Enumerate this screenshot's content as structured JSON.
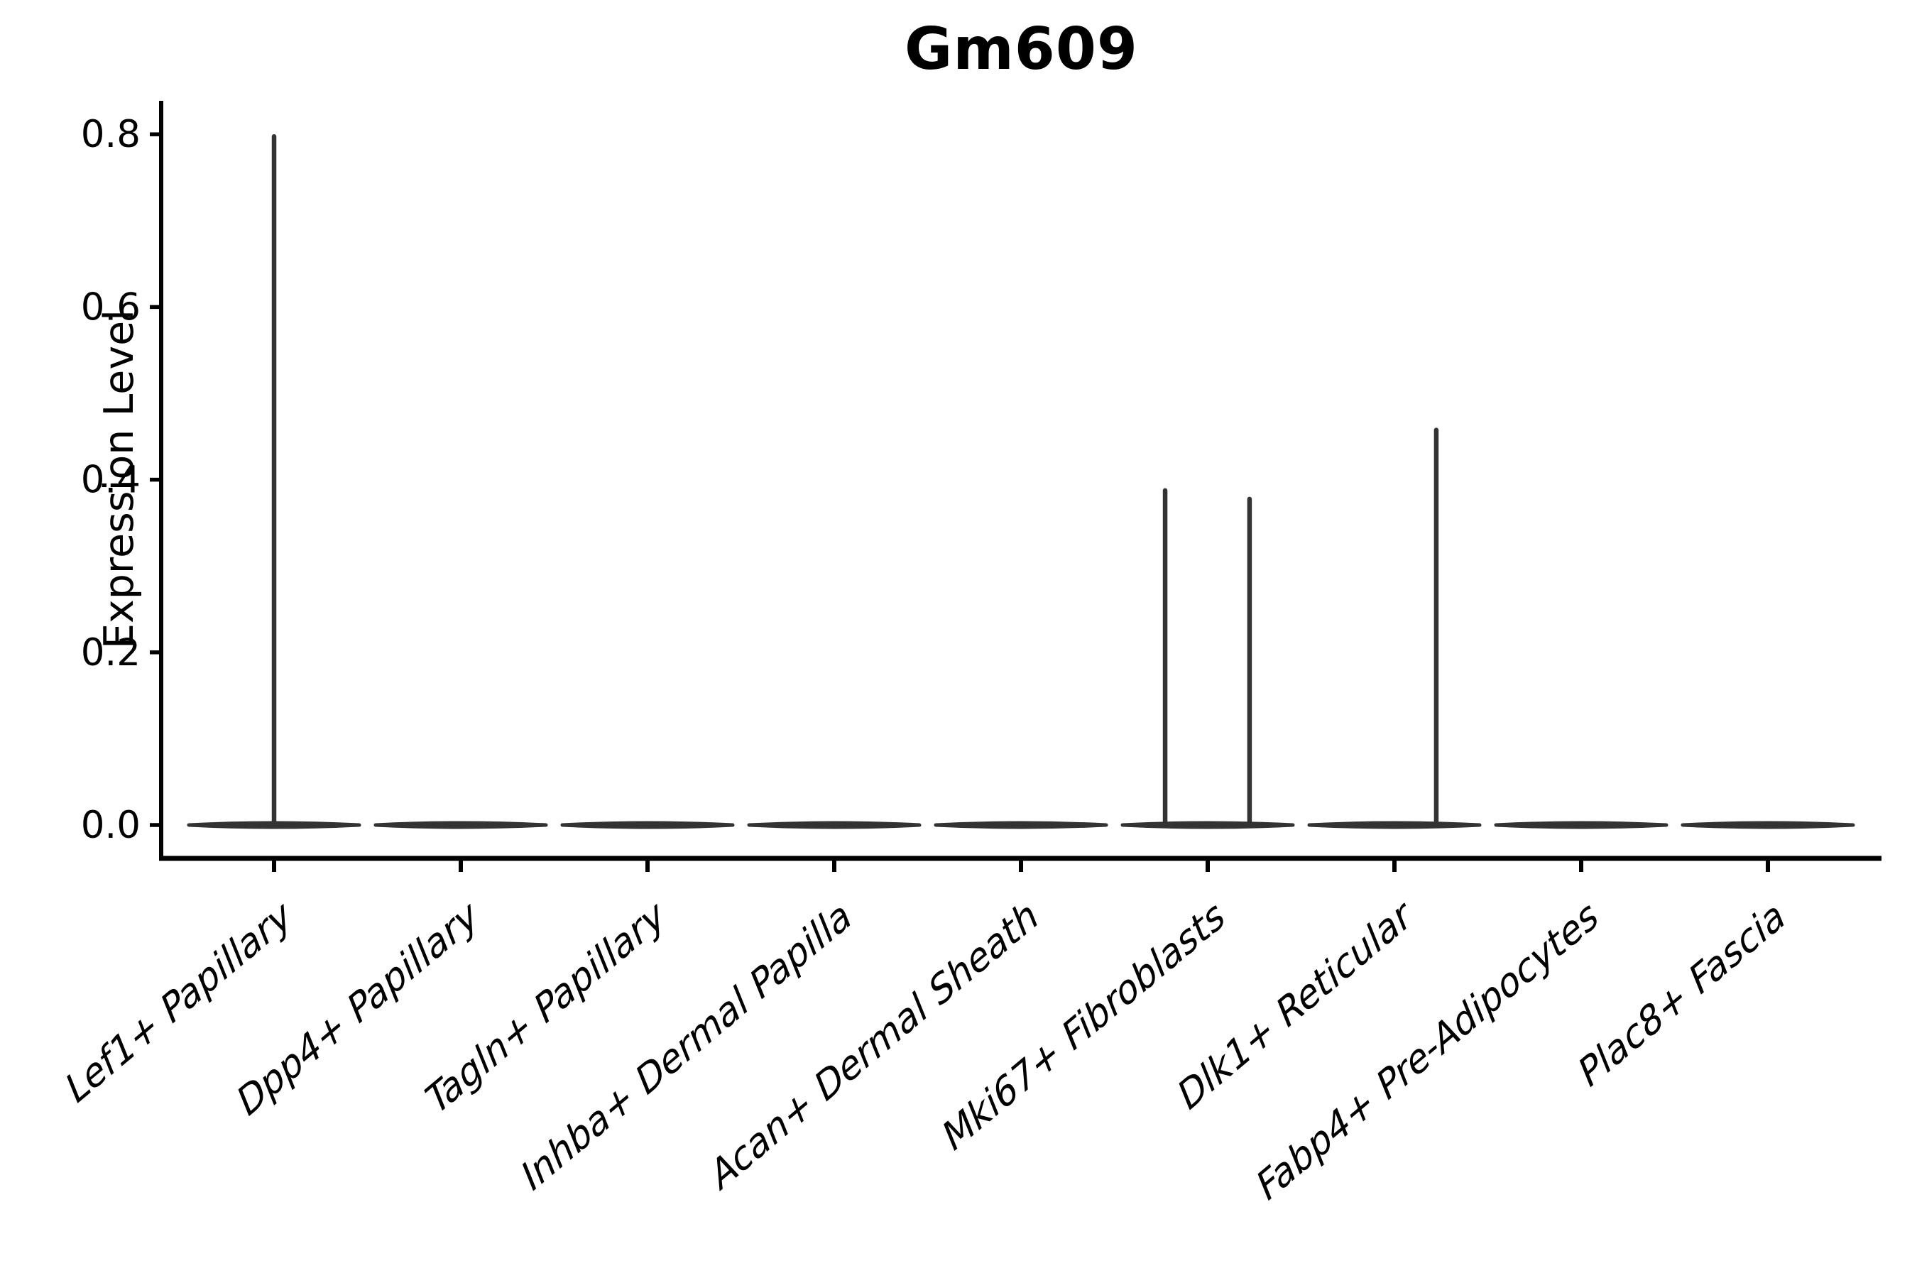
{
  "chart_data": {
    "type": "violin",
    "title": "Gm609",
    "xlabel": "",
    "ylabel": "Expression Level",
    "categories": [
      "Lef1+ Papillary",
      "Dpp4+ Papillary",
      "Tagln+ Papillary",
      "Inhba+ Dermal Papilla",
      "Acan+ Dermal Sheath",
      "Mki67+ Fibroblasts",
      "Dlk1+ Reticular",
      "Fabp4+ Pre-Adipocytes",
      "Plac8+ Fascia"
    ],
    "ylim": [
      -0.04,
      0.84
    ],
    "y_ticks": [
      0.0,
      0.2,
      0.4,
      0.6,
      0.8
    ],
    "y_tick_labels": [
      "0.0",
      "0.2",
      "0.4",
      "0.6",
      "0.8"
    ],
    "baseline_value": 0.0,
    "grid": false,
    "legend": "none",
    "violins": [
      {
        "category": "Lef1+ Papillary",
        "body_value": 0.0,
        "spikes": [
          {
            "offset": 0.0,
            "peak": 0.8
          }
        ]
      },
      {
        "category": "Dpp4+ Papillary",
        "body_value": 0.0,
        "spikes": []
      },
      {
        "category": "Tagln+ Papillary",
        "body_value": 0.0,
        "spikes": []
      },
      {
        "category": "Inhba+ Dermal Papilla",
        "body_value": 0.0,
        "spikes": []
      },
      {
        "category": "Acan+ Dermal Sheath",
        "body_value": 0.0,
        "spikes": []
      },
      {
        "category": "Mki67+ Fibroblasts",
        "body_value": 0.0,
        "spikes": [
          {
            "offset": -0.228,
            "peak": 0.39
          },
          {
            "offset": 0.224,
            "peak": 0.38
          }
        ]
      },
      {
        "category": "Dlk1+ Reticular",
        "body_value": 0.0,
        "spikes": [
          {
            "offset": 0.224,
            "peak": 0.46
          }
        ]
      },
      {
        "category": "Fabp4+ Pre-Adipocytes",
        "body_value": 0.0,
        "spikes": []
      },
      {
        "category": "Plac8+ Fascia",
        "body_value": 0.0,
        "spikes": []
      }
    ],
    "colors": {
      "violin": "#333333",
      "axis": "#000000",
      "text": "#000000",
      "background": "#ffffff"
    }
  }
}
